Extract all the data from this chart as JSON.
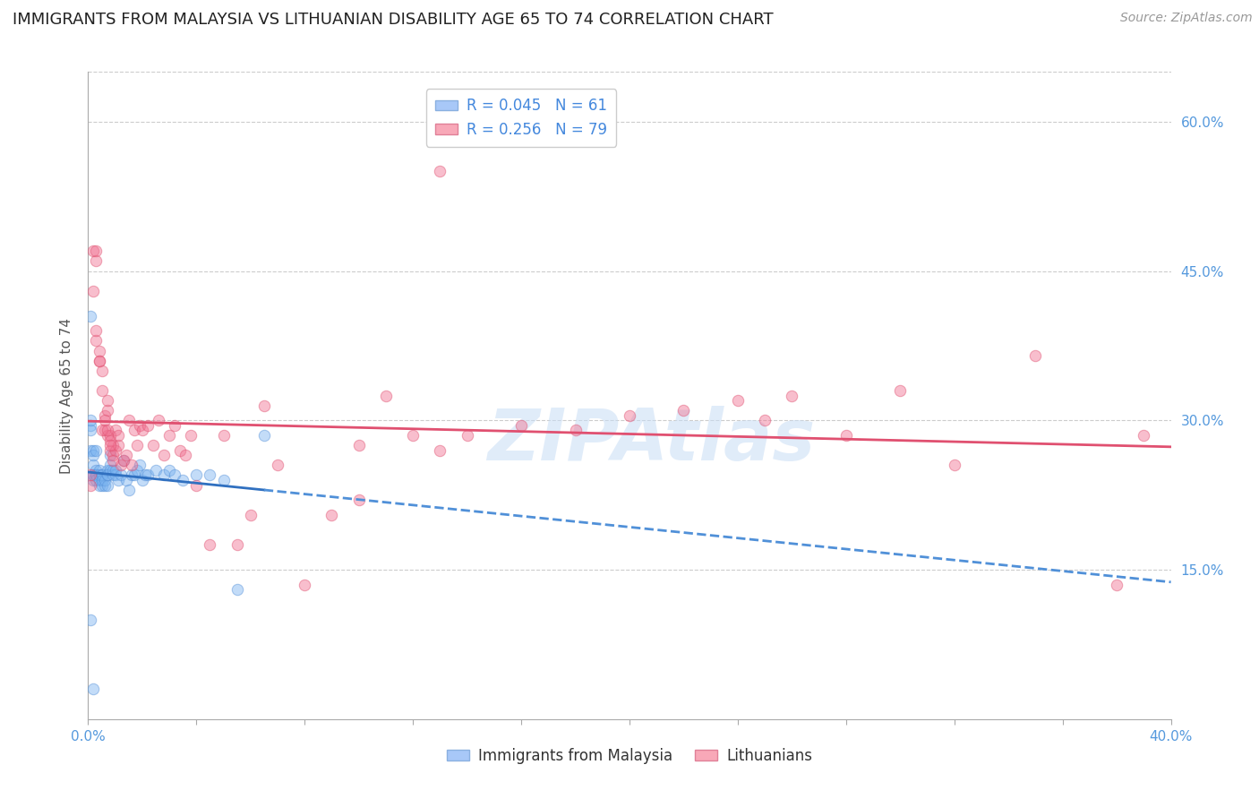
{
  "title": "IMMIGRANTS FROM MALAYSIA VS LITHUANIAN DISABILITY AGE 65 TO 74 CORRELATION CHART",
  "source": "Source: ZipAtlas.com",
  "ylabel": "Disability Age 65 to 74",
  "xlim": [
    0.0,
    0.4
  ],
  "ylim": [
    0.0,
    0.65
  ],
  "right_yticks": [
    0.6,
    0.45,
    0.3,
    0.15
  ],
  "right_ytick_labels": [
    "60.0%",
    "45.0%",
    "30.0%",
    "15.0%"
  ],
  "bottom_xtick_labels": [
    "0.0%",
    "",
    "",
    "",
    "",
    "",
    "",
    "",
    "",
    "",
    "40.0%"
  ],
  "bottom_xticks": [
    0.0,
    0.04,
    0.08,
    0.12,
    0.16,
    0.2,
    0.24,
    0.28,
    0.32,
    0.36,
    0.4
  ],
  "series1_name": "Immigrants from Malaysia",
  "series2_name": "Lithuanians",
  "series1_color": "#7ab3f0",
  "series2_color": "#f07090",
  "series1_edge_color": "#5590d8",
  "series2_edge_color": "#e05070",
  "watermark": "ZIPAtlas",
  "background_color": "#ffffff",
  "grid_color": "#cccccc",
  "title_fontsize": 13,
  "axis_label_fontsize": 11,
  "tick_fontsize": 11,
  "legend_fontsize": 12,
  "source_fontsize": 10,
  "scatter_alpha": 0.45,
  "scatter_size": 80,
  "series1_x": [
    0.001,
    0.001,
    0.001,
    0.001,
    0.001,
    0.002,
    0.002,
    0.002,
    0.002,
    0.002,
    0.002,
    0.003,
    0.003,
    0.003,
    0.003,
    0.003,
    0.004,
    0.004,
    0.004,
    0.004,
    0.005,
    0.005,
    0.005,
    0.005,
    0.006,
    0.006,
    0.007,
    0.007,
    0.007,
    0.007,
    0.008,
    0.008,
    0.008,
    0.009,
    0.009,
    0.01,
    0.01,
    0.011,
    0.012,
    0.013,
    0.014,
    0.015,
    0.016,
    0.017,
    0.018,
    0.019,
    0.02,
    0.021,
    0.022,
    0.025,
    0.028,
    0.03,
    0.032,
    0.035,
    0.04,
    0.045,
    0.05,
    0.055,
    0.065,
    0.001,
    0.002
  ],
  "series1_y": [
    0.405,
    0.295,
    0.29,
    0.27,
    0.3,
    0.27,
    0.255,
    0.245,
    0.24,
    0.265,
    0.245,
    0.25,
    0.245,
    0.245,
    0.24,
    0.27,
    0.24,
    0.25,
    0.245,
    0.235,
    0.245,
    0.245,
    0.235,
    0.24,
    0.235,
    0.24,
    0.235,
    0.245,
    0.25,
    0.245,
    0.255,
    0.265,
    0.25,
    0.245,
    0.25,
    0.245,
    0.25,
    0.24,
    0.245,
    0.26,
    0.24,
    0.23,
    0.245,
    0.245,
    0.25,
    0.255,
    0.24,
    0.245,
    0.245,
    0.25,
    0.245,
    0.25,
    0.245,
    0.24,
    0.245,
    0.245,
    0.24,
    0.13,
    0.285,
    0.1,
    0.03
  ],
  "series2_x": [
    0.001,
    0.002,
    0.002,
    0.003,
    0.003,
    0.004,
    0.004,
    0.005,
    0.005,
    0.006,
    0.006,
    0.007,
    0.007,
    0.008,
    0.008,
    0.009,
    0.009,
    0.01,
    0.01,
    0.011,
    0.011,
    0.012,
    0.013,
    0.014,
    0.015,
    0.016,
    0.017,
    0.018,
    0.019,
    0.02,
    0.022,
    0.024,
    0.026,
    0.028,
    0.03,
    0.032,
    0.034,
    0.036,
    0.038,
    0.04,
    0.045,
    0.05,
    0.055,
    0.06,
    0.065,
    0.07,
    0.08,
    0.09,
    0.1,
    0.11,
    0.12,
    0.13,
    0.14,
    0.16,
    0.18,
    0.2,
    0.22,
    0.24,
    0.26,
    0.28,
    0.3,
    0.32,
    0.35,
    0.38,
    0.39,
    0.008,
    0.007,
    0.003,
    0.003,
    0.004,
    0.005,
    0.006,
    0.007,
    0.008,
    0.009,
    0.1,
    0.13,
    0.25,
    0.001
  ],
  "series2_y": [
    0.235,
    0.43,
    0.47,
    0.38,
    0.46,
    0.36,
    0.37,
    0.33,
    0.35,
    0.29,
    0.305,
    0.285,
    0.31,
    0.27,
    0.285,
    0.265,
    0.275,
    0.27,
    0.29,
    0.275,
    0.285,
    0.255,
    0.26,
    0.265,
    0.3,
    0.255,
    0.29,
    0.275,
    0.295,
    0.29,
    0.295,
    0.275,
    0.3,
    0.265,
    0.285,
    0.295,
    0.27,
    0.265,
    0.285,
    0.235,
    0.175,
    0.285,
    0.175,
    0.205,
    0.315,
    0.255,
    0.135,
    0.205,
    0.275,
    0.325,
    0.285,
    0.55,
    0.285,
    0.295,
    0.29,
    0.305,
    0.31,
    0.32,
    0.325,
    0.285,
    0.33,
    0.255,
    0.365,
    0.135,
    0.285,
    0.28,
    0.32,
    0.39,
    0.47,
    0.36,
    0.29,
    0.3,
    0.29,
    0.275,
    0.26,
    0.22,
    0.27,
    0.3,
    0.245
  ]
}
